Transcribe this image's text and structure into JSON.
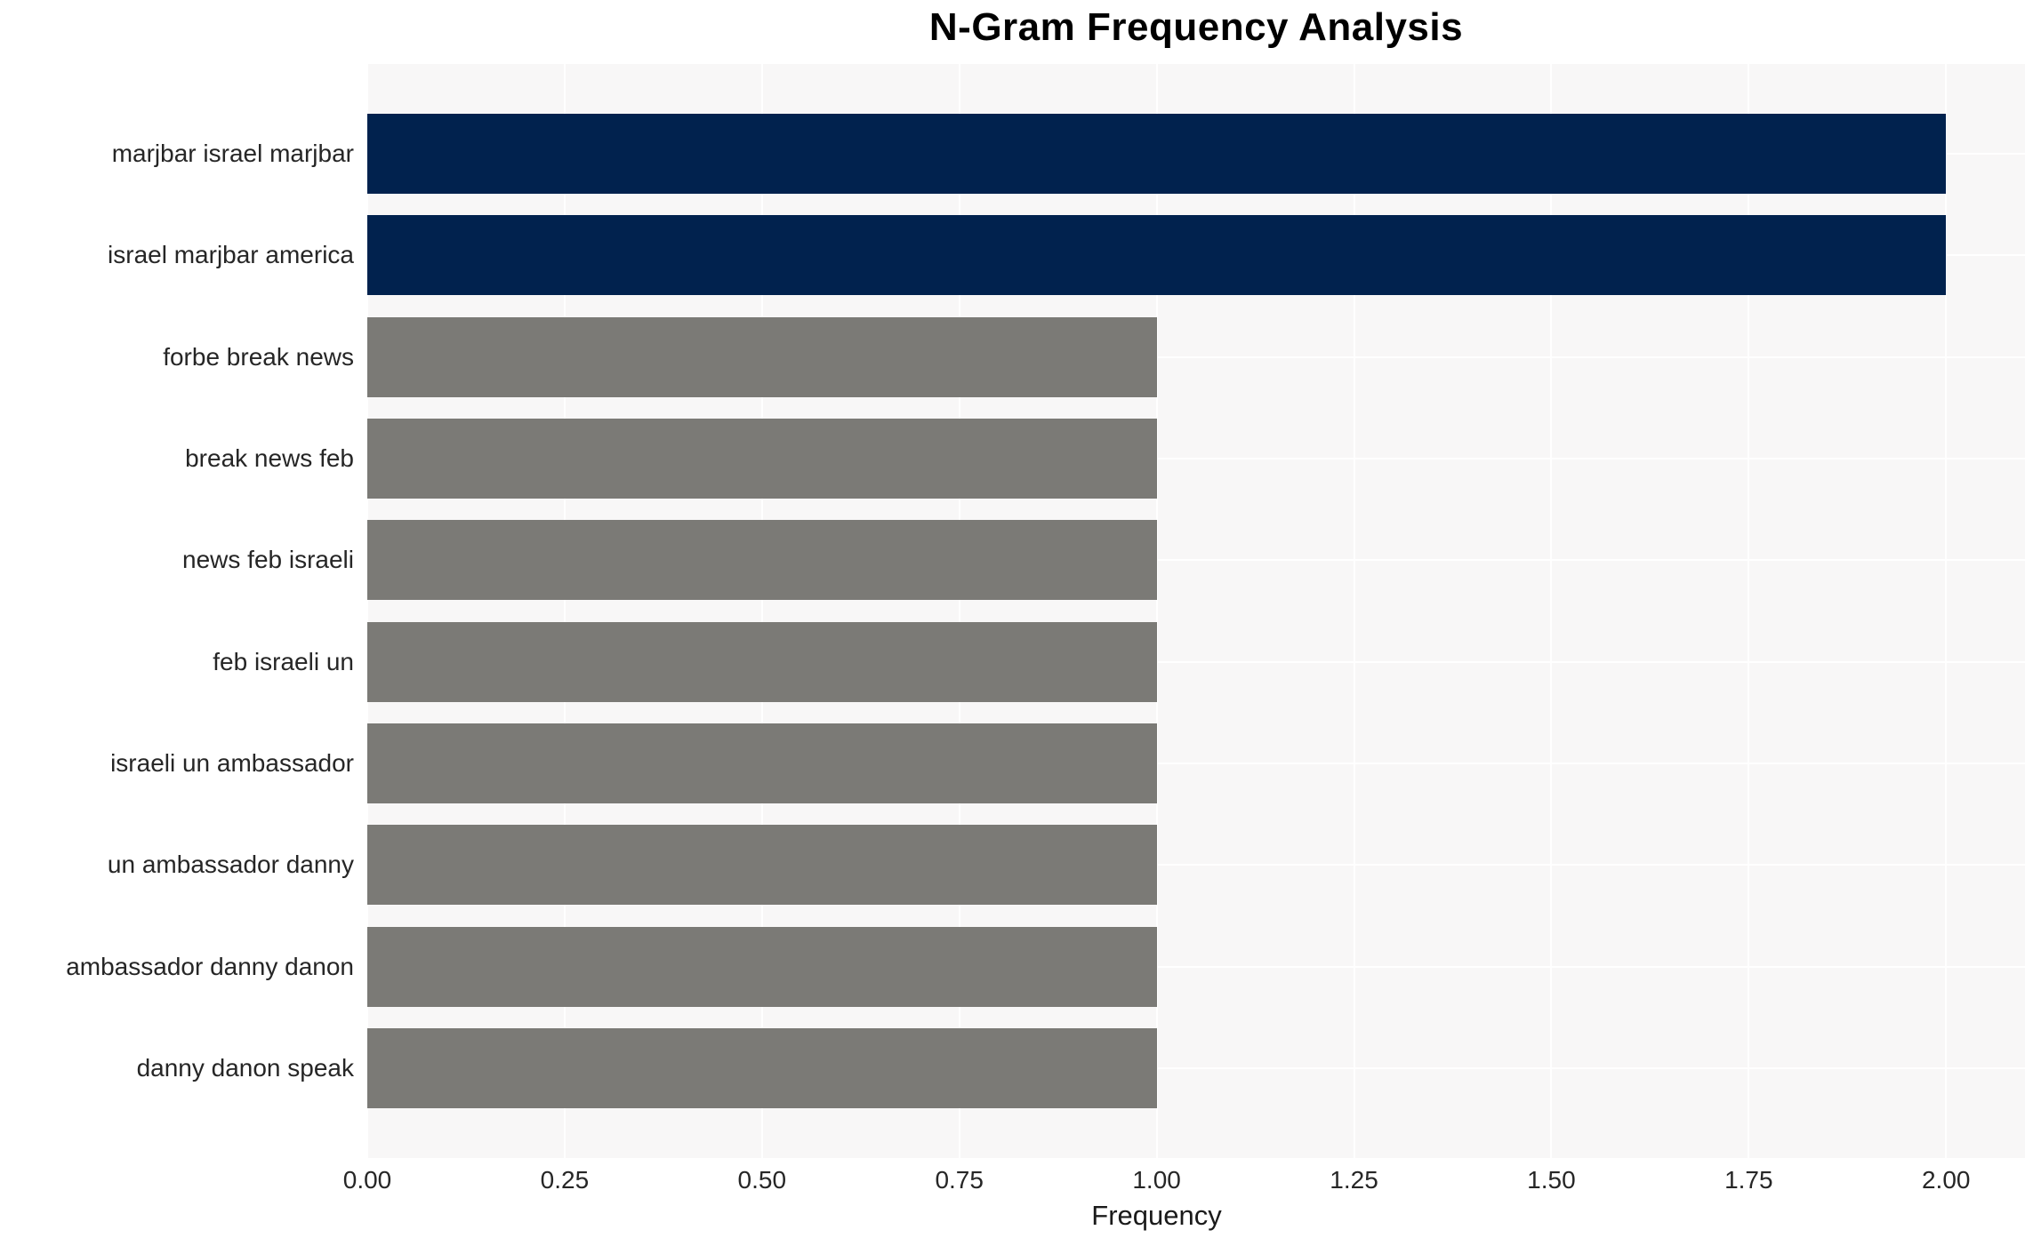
{
  "chart_data": {
    "type": "bar",
    "orientation": "horizontal",
    "title": "N-Gram Frequency Analysis",
    "xlabel": "Frequency",
    "ylabel": "",
    "categories": [
      "marjbar israel marjbar",
      "israel marjbar america",
      "forbe break news",
      "break news feb",
      "news feb israeli",
      "feb israeli un",
      "israeli un ambassador",
      "un ambassador danny",
      "ambassador danny danon",
      "danny danon speak"
    ],
    "values": [
      2,
      2,
      1,
      1,
      1,
      1,
      1,
      1,
      1,
      1
    ],
    "bar_colors": [
      "#01224e",
      "#01224e",
      "#7b7a76",
      "#7b7a76",
      "#7b7a76",
      "#7b7a76",
      "#7b7a76",
      "#7b7a76",
      "#7b7a76",
      "#7b7a76"
    ],
    "xlim": [
      0,
      2.1
    ],
    "xticks": [
      0,
      0.25,
      0.5,
      0.75,
      1.0,
      1.25,
      1.5,
      1.75,
      2.0
    ],
    "xtick_labels": [
      "0.00",
      "0.25",
      "0.50",
      "0.75",
      "1.00",
      "1.25",
      "1.50",
      "1.75",
      "2.00"
    ],
    "grid": true,
    "legend": false,
    "colors": {
      "bar_high": "#01224e",
      "bar_low": "#7b7a76",
      "plot_background": "#f8f7f7",
      "figure_background": "#ffffff",
      "gridline": "#ffffff",
      "tick_text": "#262626",
      "title_text": "#000000"
    }
  }
}
